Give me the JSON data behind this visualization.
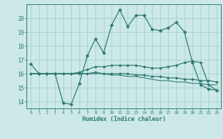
{
  "xlabel": "Humidex (Indice chaleur)",
  "xlim": [
    -0.5,
    23.5
  ],
  "ylim": [
    13.5,
    21.0
  ],
  "yticks": [
    14,
    15,
    16,
    17,
    18,
    19,
    20
  ],
  "xticks": [
    0,
    1,
    2,
    3,
    4,
    5,
    6,
    7,
    8,
    9,
    10,
    11,
    12,
    13,
    14,
    15,
    16,
    17,
    18,
    19,
    20,
    21,
    22,
    23
  ],
  "bg_color": "#cce8e8",
  "grid_color": "#99cccc",
  "line_color": "#2d7a6e",
  "lines": [
    {
      "x": [
        0,
        1,
        2,
        3,
        4,
        5,
        6,
        7,
        8,
        9,
        10,
        11,
        12,
        13,
        14,
        15,
        16,
        17,
        18,
        19,
        20,
        21,
        22,
        23
      ],
      "y": [
        16.7,
        16.0,
        16.0,
        16.0,
        13.9,
        13.8,
        15.3,
        17.3,
        18.5,
        17.5,
        19.5,
        20.6,
        19.4,
        20.2,
        20.2,
        19.2,
        19.1,
        19.3,
        19.7,
        19.0,
        16.8,
        15.2,
        14.9,
        14.8
      ],
      "marker": "D",
      "markersize": 2.5,
      "linewidth": 0.9
    },
    {
      "x": [
        0,
        1,
        2,
        3,
        4,
        5,
        6,
        7,
        8,
        9,
        10,
        11,
        12,
        13,
        14,
        15,
        16,
        17,
        18,
        19,
        20,
        21,
        22,
        23
      ],
      "y": [
        16.0,
        16.0,
        16.0,
        16.0,
        16.0,
        16.0,
        16.1,
        16.3,
        16.5,
        16.5,
        16.6,
        16.6,
        16.6,
        16.6,
        16.5,
        16.4,
        16.4,
        16.5,
        16.6,
        16.8,
        16.9,
        16.8,
        15.2,
        14.8
      ],
      "marker": "D",
      "markersize": 2.0,
      "linewidth": 0.9
    },
    {
      "x": [
        0,
        1,
        2,
        3,
        4,
        5,
        6,
        7,
        8,
        9,
        10,
        11,
        12,
        13,
        14,
        15,
        16,
        17,
        18,
        19,
        20,
        21,
        22,
        23
      ],
      "y": [
        16.0,
        16.0,
        16.0,
        16.0,
        16.0,
        16.0,
        16.0,
        16.0,
        16.1,
        16.0,
        16.0,
        16.0,
        16.0,
        15.9,
        15.9,
        15.8,
        15.8,
        15.7,
        15.7,
        15.6,
        15.6,
        15.5,
        15.5,
        15.4
      ],
      "marker": "D",
      "markersize": 2.0,
      "linewidth": 0.9
    },
    {
      "x": [
        0,
        1,
        2,
        3,
        4,
        5,
        6,
        7,
        8,
        9,
        10,
        11,
        12,
        13,
        14,
        15,
        16,
        17,
        18,
        19,
        20,
        21,
        22,
        23
      ],
      "y": [
        16.0,
        16.0,
        16.0,
        16.0,
        16.0,
        16.0,
        16.0,
        16.0,
        16.0,
        16.0,
        15.9,
        15.9,
        15.8,
        15.8,
        15.7,
        15.6,
        15.5,
        15.5,
        15.4,
        15.4,
        15.3,
        15.3,
        15.2,
        15.2
      ],
      "marker": null,
      "markersize": 0,
      "linewidth": 0.8
    }
  ]
}
